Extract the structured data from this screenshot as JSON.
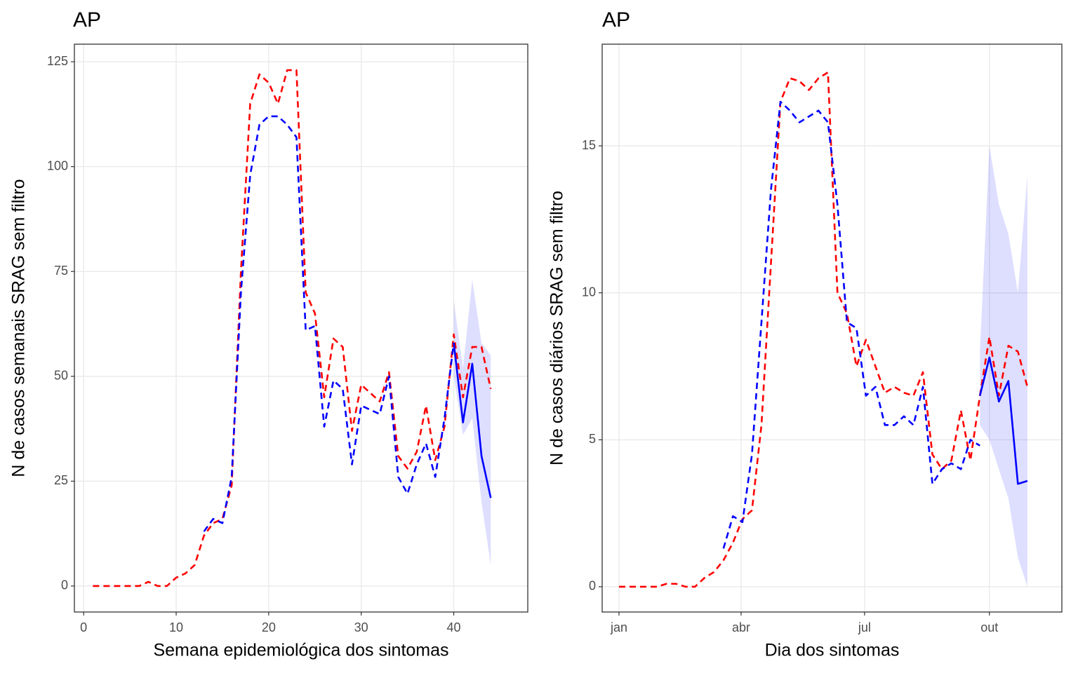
{
  "chart_data": [
    {
      "type": "line",
      "title": "AP",
      "x_label": "Semana epidemiológica dos sintomas",
      "y_label": "N de casos semanais SRAG sem filtro",
      "x": [
        1,
        2,
        3,
        4,
        5,
        6,
        7,
        8,
        9,
        10,
        11,
        12,
        13,
        14,
        15,
        16,
        17,
        18,
        19,
        20,
        21,
        22,
        23,
        24,
        25,
        26,
        27,
        28,
        29,
        30,
        31,
        32,
        33,
        34,
        35,
        36,
        37,
        38,
        39,
        40,
        41,
        42,
        43,
        44
      ],
      "xlim": [
        -1,
        48
      ],
      "ylim": [
        -6.2,
        129.2
      ],
      "xticks": [
        0,
        10,
        20,
        30,
        40
      ],
      "yticks": [
        0,
        25,
        50,
        75,
        100,
        125
      ],
      "grid": true,
      "series": [
        {
          "color": "#ff0000",
          "dashed": true,
          "values": [
            0,
            0,
            0,
            0,
            0,
            0,
            1,
            0,
            0,
            2,
            3,
            5,
            12,
            15,
            16,
            24,
            75,
            115,
            122,
            120,
            115,
            123,
            123,
            70,
            65,
            45,
            59,
            57,
            37,
            48,
            46,
            44,
            51,
            31,
            28,
            32,
            43,
            30,
            38,
            60,
            45,
            57,
            57,
            47
          ]
        },
        {
          "color": "#0000ff",
          "dashed": true,
          "values": [
            null,
            null,
            null,
            null,
            null,
            null,
            null,
            null,
            null,
            null,
            null,
            null,
            13,
            16,
            15,
            26,
            70,
            98,
            110,
            112,
            112,
            110,
            107,
            61,
            62,
            38,
            49,
            47,
            29,
            43,
            42,
            41,
            50,
            26,
            22,
            29,
            34,
            26,
            40,
            58,
            null,
            null,
            null,
            null
          ]
        },
        {
          "color": "#0000ff",
          "dashed": false,
          "values": [
            null,
            null,
            null,
            null,
            null,
            null,
            null,
            null,
            null,
            null,
            null,
            null,
            null,
            null,
            null,
            null,
            null,
            null,
            null,
            null,
            null,
            null,
            null,
            null,
            null,
            null,
            null,
            null,
            null,
            null,
            null,
            null,
            null,
            null,
            null,
            null,
            null,
            null,
            null,
            58,
            39,
            53,
            31,
            21
          ]
        }
      ],
      "band": {
        "color": "#0000ff",
        "lower": [
          null,
          null,
          null,
          null,
          null,
          null,
          null,
          null,
          null,
          null,
          null,
          null,
          null,
          null,
          null,
          null,
          null,
          null,
          null,
          null,
          null,
          null,
          null,
          null,
          null,
          null,
          null,
          null,
          null,
          null,
          null,
          null,
          null,
          null,
          null,
          null,
          null,
          null,
          null,
          50,
          36,
          40,
          20,
          5
        ],
        "upper": [
          null,
          null,
          null,
          null,
          null,
          null,
          null,
          null,
          null,
          null,
          null,
          null,
          null,
          null,
          null,
          null,
          null,
          null,
          null,
          null,
          null,
          null,
          null,
          null,
          null,
          null,
          null,
          null,
          null,
          null,
          null,
          null,
          null,
          null,
          null,
          null,
          null,
          null,
          null,
          68,
          52,
          73,
          58,
          55
        ]
      }
    },
    {
      "type": "line",
      "title": "AP",
      "x_label": "Dia dos sintomas",
      "y_label": "N de casos diários SRAG sem filtro",
      "x": [
        1,
        8,
        15,
        22,
        29,
        36,
        43,
        50,
        57,
        64,
        71,
        78,
        85,
        92,
        99,
        106,
        113,
        120,
        127,
        134,
        141,
        148,
        155,
        162,
        169,
        176,
        183,
        190,
        197,
        204,
        211,
        218,
        225,
        232,
        239,
        246,
        253,
        260,
        267,
        274,
        281,
        288,
        295,
        302
      ],
      "xlim": [
        -11.4,
        327.4
      ],
      "ylim": [
        -0.86,
        18.46
      ],
      "xticks": [
        {
          "value": 1,
          "label": "jan"
        },
        {
          "value": 91,
          "label": "abr"
        },
        {
          "value": 182,
          "label": "jul"
        },
        {
          "value": 274,
          "label": "out"
        }
      ],
      "yticks": [
        0,
        5,
        10,
        15
      ],
      "grid": true,
      "series": [
        {
          "color": "#ff0000",
          "dashed": true,
          "values": [
            0,
            0,
            0,
            0,
            0,
            0.1,
            0.1,
            0,
            0,
            0.3,
            0.5,
            0.9,
            1.5,
            2.3,
            2.6,
            5.5,
            11,
            16.5,
            17.3,
            17.2,
            16.9,
            17.3,
            17.5,
            10,
            9.3,
            7.5,
            8.4,
            7.5,
            6.6,
            6.8,
            6.6,
            6.5,
            7.3,
            4.5,
            4,
            4.3,
            6,
            4.3,
            6.5,
            8.5,
            6.5,
            8.2,
            8,
            6.8
          ]
        },
        {
          "color": "#0000ff",
          "dashed": true,
          "values": [
            null,
            null,
            null,
            null,
            null,
            null,
            null,
            null,
            null,
            null,
            null,
            1.3,
            2.4,
            2.2,
            4.5,
            9,
            13.5,
            16.5,
            16.2,
            15.8,
            16,
            16.2,
            15.8,
            13,
            9,
            8.8,
            6.5,
            6.8,
            5.5,
            5.5,
            5.8,
            5.5,
            6.8,
            3.5,
            4,
            4.2,
            4,
            5,
            4.8,
            null,
            null,
            null,
            null,
            null
          ]
        },
        {
          "color": "#0000ff",
          "dashed": false,
          "values": [
            null,
            null,
            null,
            null,
            null,
            null,
            null,
            null,
            null,
            null,
            null,
            null,
            null,
            null,
            null,
            null,
            null,
            null,
            null,
            null,
            null,
            null,
            null,
            null,
            null,
            null,
            null,
            null,
            null,
            null,
            null,
            null,
            null,
            null,
            null,
            null,
            null,
            null,
            6.5,
            7.8,
            6.3,
            7,
            3.5,
            3.6
          ]
        }
      ],
      "band": {
        "color": "#0000ff",
        "lower": [
          null,
          null,
          null,
          null,
          null,
          null,
          null,
          null,
          null,
          null,
          null,
          null,
          null,
          null,
          null,
          null,
          null,
          null,
          null,
          null,
          null,
          null,
          null,
          null,
          null,
          null,
          null,
          null,
          null,
          null,
          null,
          null,
          null,
          null,
          null,
          null,
          null,
          null,
          5.5,
          5,
          4,
          3,
          1,
          0
        ],
        "upper": [
          null,
          null,
          null,
          null,
          null,
          null,
          null,
          null,
          null,
          null,
          null,
          null,
          null,
          null,
          null,
          null,
          null,
          null,
          null,
          null,
          null,
          null,
          null,
          null,
          null,
          null,
          null,
          null,
          null,
          null,
          null,
          null,
          null,
          null,
          null,
          null,
          null,
          null,
          8,
          15,
          13,
          12,
          10,
          14
        ]
      }
    }
  ]
}
